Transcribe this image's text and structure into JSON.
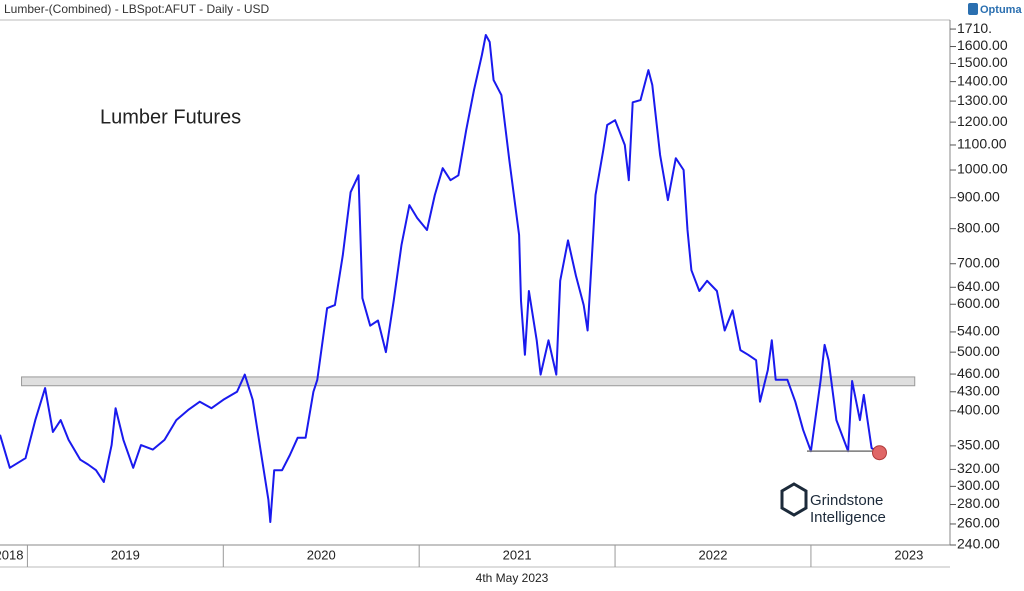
{
  "chart_data": {
    "type": "line",
    "title": "Lumber-(Combined) - LBSpot:AFUT - Daily - USD",
    "annotation": "Lumber Futures",
    "log_scale": true,
    "x": [
      2018.86,
      2018.91,
      2018.99,
      2019.04,
      2019.09,
      2019.13,
      2019.17,
      2019.21,
      2019.27,
      2019.31,
      2019.35,
      2019.39,
      2019.43,
      2019.45,
      2019.49,
      2019.54,
      2019.58,
      2019.64,
      2019.7,
      2019.76,
      2019.82,
      2019.88,
      2019.94,
      2020.0,
      2020.07,
      2020.11,
      2020.15,
      2020.19,
      2020.23,
      2020.24,
      2020.26,
      2020.3,
      2020.34,
      2020.38,
      2020.42,
      2020.46,
      2020.48,
      2020.53,
      2020.57,
      2020.61,
      2020.65,
      2020.69,
      2020.71,
      2020.75,
      2020.79,
      2020.83,
      2020.87,
      2020.91,
      2020.95,
      2020.99,
      2021.04,
      2021.08,
      2021.12,
      2021.16,
      2021.2,
      2021.24,
      2021.28,
      2021.32,
      2021.34,
      2021.36,
      2021.38,
      2021.42,
      2021.46,
      2021.51,
      2021.52,
      2021.54,
      2021.56,
      2021.6,
      2021.62,
      2021.66,
      2021.7,
      2021.72,
      2021.76,
      2021.8,
      2021.84,
      2021.86,
      2021.9,
      2021.94,
      2021.96,
      2022.0,
      2022.05,
      2022.07,
      2022.09,
      2022.13,
      2022.17,
      2022.19,
      2022.23,
      2022.27,
      2022.31,
      2022.35,
      2022.37,
      2022.39,
      2022.43,
      2022.47,
      2022.52,
      2022.56,
      2022.6,
      2022.64,
      2022.68,
      2022.72,
      2022.74,
      2022.78,
      2022.8,
      2022.82,
      2022.88,
      2022.92,
      2022.96,
      2023.0,
      2023.05,
      2023.07,
      2023.09,
      2023.13,
      2023.19,
      2023.21,
      2023.25,
      2023.27,
      2023.31,
      2023.35
    ],
    "series": [
      {
        "color": "#1a1aee",
        "values": [
          365,
          322,
          334,
          386,
          436,
          369,
          386,
          358,
          332,
          326,
          319,
          305,
          351,
          404,
          358,
          322,
          351,
          345,
          358,
          386,
          401,
          414,
          404,
          417,
          430,
          459,
          417,
          345,
          285,
          262,
          319,
          319,
          338,
          361,
          361,
          430,
          450,
          591,
          598,
          723,
          919,
          980,
          614,
          553,
          564,
          500,
          608,
          752,
          875,
          833,
          796,
          909,
          1007,
          962,
          980,
          1164,
          1356,
          1549,
          1672,
          1628,
          1408,
          1330,
          1039,
          781,
          608,
          495,
          631,
          523,
          459,
          523,
          459,
          656,
          765,
          669,
          598,
          543,
          909,
          1079,
          1187,
          1209,
          1100,
          962,
          1294,
          1305,
          1463,
          1382,
          1059,
          892,
          1046,
          1000,
          796,
          683,
          631,
          656,
          631,
          543,
          586,
          504,
          495,
          485,
          414,
          467,
          523,
          450,
          450,
          414,
          372,
          343,
          450,
          514,
          485,
          386,
          343,
          448,
          386,
          425,
          347,
          341
        ]
      }
    ],
    "xlim": [
      2018.86,
      2023.71
    ],
    "xticks": [
      2018,
      2019,
      2020,
      2021,
      2022,
      2023
    ],
    "ylim": [
      240,
      1770
    ],
    "yticks": [
      {
        "value": 240,
        "label": "240.00"
      },
      {
        "value": 260,
        "label": "260.00"
      },
      {
        "value": 280,
        "label": "280.00"
      },
      {
        "value": 300,
        "label": "300.00"
      },
      {
        "value": 320,
        "label": "320.00"
      },
      {
        "value": 350,
        "label": "350.00"
      },
      {
        "value": 400,
        "label": "400.00"
      },
      {
        "value": 430,
        "label": "430.00"
      },
      {
        "value": 460,
        "label": "460.00"
      },
      {
        "value": 500,
        "label": "500.00"
      },
      {
        "value": 540,
        "label": "540.00"
      },
      {
        "value": 600,
        "label": "600.00"
      },
      {
        "value": 640,
        "label": "640.00"
      },
      {
        "value": 700,
        "label": "700.00"
      },
      {
        "value": 800,
        "label": "800.00"
      },
      {
        "value": 900,
        "label": "900.00"
      },
      {
        "value": 1000,
        "label": "1000.00"
      },
      {
        "value": 1100,
        "label": "1100.00"
      },
      {
        "value": 1200,
        "label": "1200.00"
      },
      {
        "value": 1300,
        "label": "1300.00"
      },
      {
        "value": 1400,
        "label": "1400.00"
      },
      {
        "value": 1500,
        "label": "1500.00"
      },
      {
        "value": 1600,
        "label": "1600.00"
      },
      {
        "value": 1710,
        "label": "1710."
      }
    ],
    "zone": {
      "low": 440,
      "high": 455,
      "x": [
        2018.97,
        2023.53
      ]
    },
    "support_line": {
      "value": 343,
      "x": [
        2022.98,
        2023.36
      ]
    }
  },
  "footer": {
    "date": "4th May 2023"
  },
  "branding": {
    "logo": "Optuma",
    "watermark": [
      "Grindstone",
      "Intelligence"
    ]
  }
}
